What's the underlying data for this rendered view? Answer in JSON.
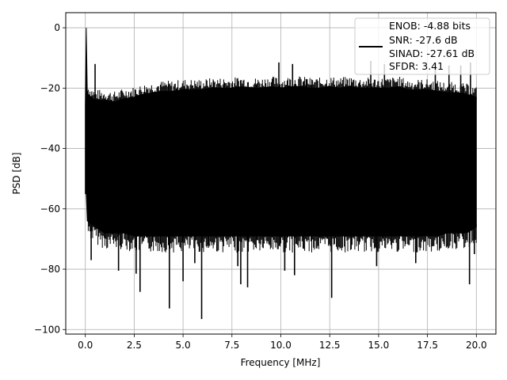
{
  "chart_data": {
    "type": "line",
    "xlabel": "Frequency [MHz]",
    "ylabel": "PSD [dB]",
    "xlim": [
      -1.0,
      21.0
    ],
    "ylim": [
      -101.5,
      5.0
    ],
    "xticks": [
      0.0,
      2.5,
      5.0,
      7.5,
      10.0,
      12.5,
      15.0,
      17.5,
      20.0
    ],
    "xtick_labels": [
      "0.0",
      "2.5",
      "5.0",
      "7.5",
      "10.0",
      "12.5",
      "15.0",
      "17.5",
      "20.0"
    ],
    "yticks": [
      0,
      -20,
      -40,
      -60,
      -80,
      -100
    ],
    "ytick_labels": [
      "0",
      "−20",
      "−40",
      "−60",
      "−80",
      "−100"
    ],
    "grid": true,
    "legend_position": "top-right",
    "legend_lines": [
      "ENOB: -4.88 bits",
      "SNR: -27.6 dB",
      "SINAD: -27.61 dB",
      "SFDR: 3.41"
    ],
    "series_color": "#000000",
    "series": [
      {
        "x": [
          0.0,
          0.05,
          0.1,
          0.5,
          1.0,
          1.5,
          2.0,
          2.5,
          3.0,
          3.5,
          4.0,
          4.5,
          5.0,
          5.5,
          6.0,
          6.5,
          7.0,
          7.5,
          8.0,
          8.5,
          9.0,
          9.5,
          10.0,
          10.5,
          11.0,
          11.5,
          12.0,
          12.5,
          13.0,
          13.5,
          14.0,
          14.5,
          15.0,
          15.5,
          16.0,
          16.5,
          17.0,
          17.5,
          18.0,
          18.5,
          19.0,
          19.5,
          20.0
        ],
        "upper_envelope": [
          -26,
          0.0,
          -22,
          -24,
          -24,
          -24.5,
          -23.5,
          -23,
          -22,
          -21.5,
          -21,
          -21,
          -20.5,
          -20.5,
          -20.5,
          -20,
          -20,
          -20,
          -19.5,
          -20,
          -20,
          -19.5,
          -20,
          -19.5,
          -19.5,
          -20,
          -20,
          -19.5,
          -20,
          -19.5,
          -20,
          -20,
          -20,
          -20,
          -19.5,
          -20.5,
          -20.5,
          -20.5,
          -21,
          -21.5,
          -21.5,
          -22,
          -23
        ],
        "lower_envelope": [
          -55,
          -55,
          -64,
          -66,
          -68,
          -68,
          -68,
          -69,
          -69,
          -69,
          -69,
          -69,
          -69,
          -69,
          -69,
          -69,
          -69,
          -69,
          -69,
          -69,
          -69,
          -69,
          -69,
          -69,
          -69,
          -69,
          -69,
          -69,
          -69,
          -69,
          -69,
          -69,
          -69,
          -69,
          -69,
          -69,
          -69,
          -69,
          -69,
          -68,
          -68,
          -68,
          -66
        ]
      }
    ],
    "peaks": [
      {
        "x": 0.05,
        "y": 0.0
      },
      {
        "x": 0.1,
        "y": -21.0
      },
      {
        "x": 0.5,
        "y": -12.0
      },
      {
        "x": 6.55,
        "y": -17.5
      },
      {
        "x": 9.9,
        "y": -11.5
      },
      {
        "x": 10.6,
        "y": -12.0
      },
      {
        "x": 11.3,
        "y": -17.0
      },
      {
        "x": 14.6,
        "y": -11.0
      },
      {
        "x": 15.3,
        "y": -12.0
      },
      {
        "x": 17.9,
        "y": -12.0
      },
      {
        "x": 18.6,
        "y": -12.5
      },
      {
        "x": 19.2,
        "y": -12.5
      },
      {
        "x": 19.7,
        "y": -11.5
      }
    ],
    "dips": [
      {
        "x": 0.3,
        "y": -77.0
      },
      {
        "x": 1.7,
        "y": -80.5
      },
      {
        "x": 2.6,
        "y": -81.5
      },
      {
        "x": 2.8,
        "y": -87.5
      },
      {
        "x": 4.3,
        "y": -93.0
      },
      {
        "x": 5.0,
        "y": -84.0
      },
      {
        "x": 5.6,
        "y": -78.0
      },
      {
        "x": 5.95,
        "y": -96.5
      },
      {
        "x": 7.8,
        "y": -79.0
      },
      {
        "x": 7.95,
        "y": -85.0
      },
      {
        "x": 8.3,
        "y": -86.0
      },
      {
        "x": 10.2,
        "y": -80.5
      },
      {
        "x": 10.7,
        "y": -82.0
      },
      {
        "x": 12.6,
        "y": -89.5
      },
      {
        "x": 14.9,
        "y": -79.0
      },
      {
        "x": 16.9,
        "y": -78.0
      },
      {
        "x": 19.65,
        "y": -85.0
      },
      {
        "x": 19.9,
        "y": -75.0
      }
    ]
  }
}
